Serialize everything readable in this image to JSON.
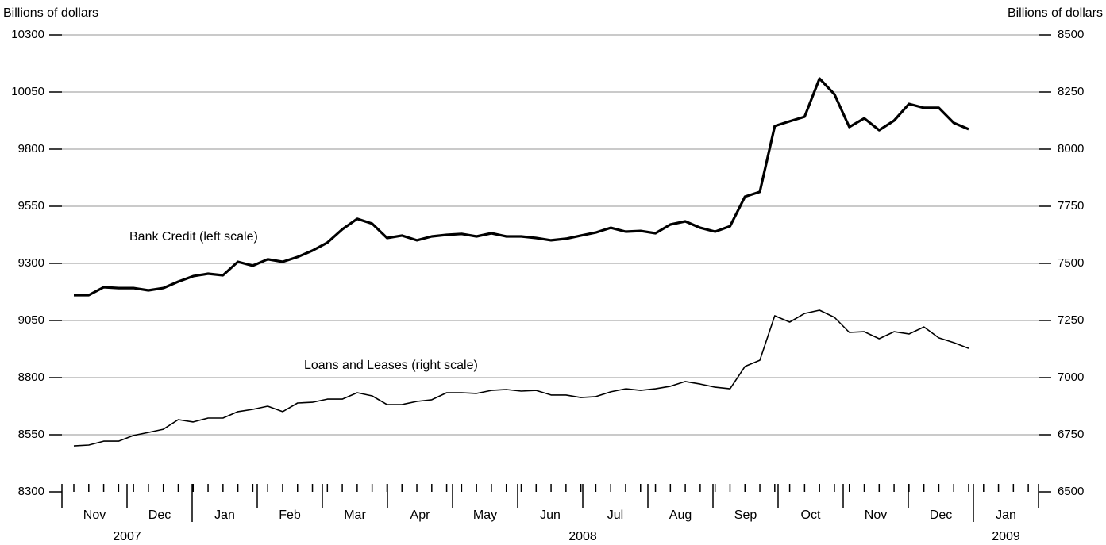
{
  "chart_data": {
    "type": "line",
    "ylabel": "Billions of dollars",
    "y2label": "Billions of dollars",
    "months": [
      "Nov",
      "Dec",
      "Jan",
      "Feb",
      "Mar",
      "Apr",
      "May",
      "Jun",
      "Jul",
      "Aug",
      "Sep",
      "Oct",
      "Nov",
      "Dec",
      "Jan"
    ],
    "years": [
      "2007",
      "2008",
      "2009"
    ],
    "ylim": [
      8300,
      10300
    ],
    "yticks": [
      8300,
      8550,
      8800,
      9050,
      9300,
      9550,
      9800,
      10050,
      10300
    ],
    "y2lim": [
      6500,
      8500
    ],
    "y2ticks": [
      6500,
      6750,
      7000,
      7250,
      7500,
      7750,
      8000,
      8250,
      8500
    ],
    "grid": true,
    "annotations": [
      "Bank Credit (left scale)",
      "Loans and Leases (right scale)"
    ],
    "series": [
      {
        "name": "Bank Credit (left scale)",
        "color": "#000000",
        "axis": "y",
        "values": [
          9161,
          9161,
          9196,
          9192,
          9192,
          9182,
          9192,
          9220,
          9244,
          9255,
          9248,
          9307,
          9290,
          9318,
          9307,
          9328,
          9356,
          9391,
          9449,
          9495,
          9474,
          9411,
          9422,
          9401,
          9418,
          9425,
          9429,
          9418,
          9432,
          9418,
          9418,
          9411,
          9401,
          9408,
          9422,
          9435,
          9456,
          9439,
          9442,
          9432,
          9470,
          9484,
          9456,
          9439,
          9463,
          9592,
          9613,
          9901,
          9922,
          9942,
          10109,
          10040,
          9897,
          9935,
          9883,
          9925,
          9998,
          9981,
          9981,
          9915,
          9887
        ]
      },
      {
        "name": "Loans and Leases (right scale)",
        "color": "#000000",
        "axis": "y2",
        "values": [
          6701,
          6705,
          6722,
          6722,
          6747,
          6760,
          6774,
          6816,
          6806,
          6823,
          6823,
          6851,
          6861,
          6875,
          6851,
          6889,
          6892,
          6906,
          6906,
          6934,
          6920,
          6882,
          6882,
          6896,
          6903,
          6934,
          6934,
          6931,
          6944,
          6948,
          6941,
          6944,
          6924,
          6924,
          6913,
          6917,
          6938,
          6951,
          6944,
          6951,
          6962,
          6983,
          6972,
          6958,
          6951,
          7049,
          7076,
          7271,
          7243,
          7281,
          7295,
          7264,
          7198,
          7201,
          7170,
          7201,
          7191,
          7222,
          7174,
          7153,
          7128
        ]
      }
    ]
  }
}
